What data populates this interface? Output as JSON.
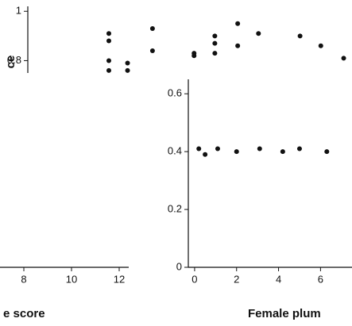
{
  "chart_data": [
    {
      "type": "scatter",
      "y_label": "ce",
      "xlim": [
        -7.5,
        8.1
      ],
      "ylim": [
        0.75,
        1.02
      ],
      "yticks": [
        0.8,
        1.0
      ],
      "color": "#111111",
      "x": [
        -3.6,
        -3.6,
        -3.6,
        -3.6,
        -2.7,
        -2.7,
        -1.5,
        -1.5,
        0.5,
        0.5,
        1.5,
        1.5,
        1.5,
        2.6,
        2.6,
        3.6,
        5.6,
        6.6,
        7.7
      ],
      "y": [
        0.91,
        0.88,
        0.8,
        0.76,
        0.79,
        0.76,
        0.93,
        0.84,
        0.83,
        0.82,
        0.9,
        0.87,
        0.83,
        0.95,
        0.86,
        0.91,
        0.9,
        0.86,
        0.81
      ]
    },
    {
      "type": "scatter",
      "x_label": "e score",
      "xlim": [
        7,
        12.4
      ],
      "xticks": [
        8,
        10,
        12
      ]
    },
    {
      "type": "scatter",
      "x_label": "Female plum",
      "xlim": [
        -0.3,
        7.5
      ],
      "xticks": [
        0,
        2,
        4,
        6
      ],
      "ylim": [
        0,
        0.65
      ],
      "yticks": [
        0.0,
        0.2,
        0.4,
        0.6
      ],
      "color": "#111111",
      "x": [
        0.2,
        0.5,
        1.1,
        2.0,
        3.1,
        4.2,
        5.0,
        6.3
      ],
      "y": [
        0.41,
        0.39,
        0.41,
        0.4,
        0.41,
        0.4,
        0.41,
        0.4
      ]
    }
  ]
}
